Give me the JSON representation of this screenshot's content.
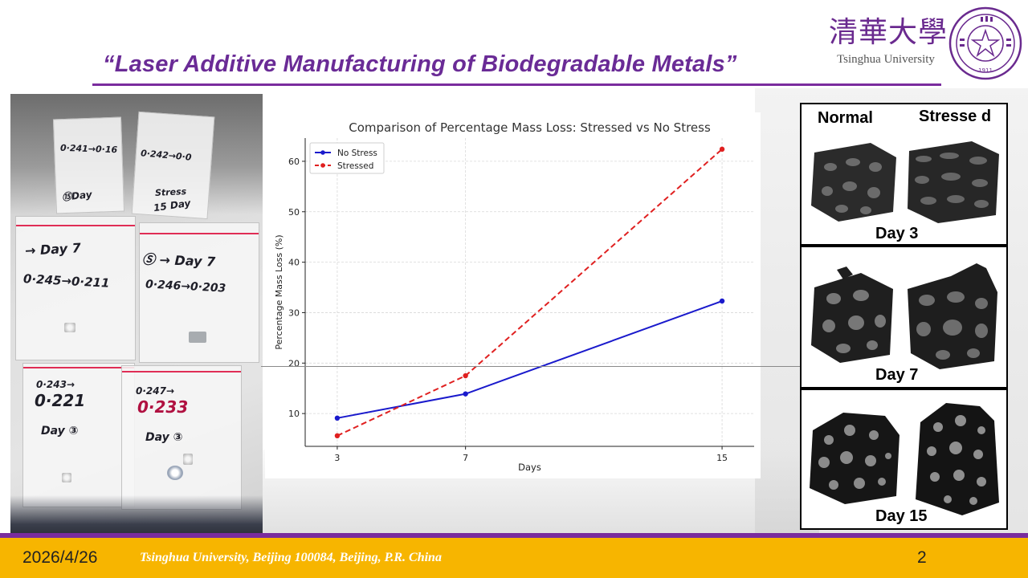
{
  "slide": {
    "title": "“Laser Additive Manufacturing of Biodegradable Metals”",
    "page_number": "2"
  },
  "logo": {
    "chinese": "清華大學",
    "english": "Tsinghua University",
    "seal_year": "1911"
  },
  "photo": {
    "labels": [
      {
        "text": "0·241→0·16"
      },
      {
        "text": "⑮Day"
      },
      {
        "text": "0·242→0·0"
      },
      {
        "text": "Stress"
      },
      {
        "text": "15 Day"
      },
      {
        "text": "→ Day 7"
      },
      {
        "text": "0·245→0·211"
      },
      {
        "text": "Ⓢ → Day 7"
      },
      {
        "text": "0·246→0·203"
      },
      {
        "text": "0·243→"
      },
      {
        "text": "0·221"
      },
      {
        "text": "Day ③"
      },
      {
        "text": "0·247→"
      },
      {
        "text": "0·233"
      },
      {
        "text": "Day ③"
      }
    ]
  },
  "chart_data": {
    "type": "line",
    "title": "Comparison of Percentage Mass Loss: Stressed vs No Stress",
    "xlabel": "Days",
    "ylabel": "Percentage Mass Loss (%)",
    "x": [
      3,
      7,
      15
    ],
    "xlim": [
      2.0,
      16.0
    ],
    "ylim": [
      3.5,
      64.6
    ],
    "xticks": [
      3,
      7,
      15
    ],
    "yticks": [
      10,
      20,
      30,
      40,
      50,
      60
    ],
    "grid": true,
    "legend_position": "top-left",
    "series": [
      {
        "name": "No Stress",
        "values": [
          9.1,
          13.9,
          32.3
        ],
        "color": "#1a1acc",
        "style": "solid"
      },
      {
        "name": "Stressed",
        "values": [
          5.6,
          17.5,
          62.4
        ],
        "color": "#e02020",
        "style": "dashed"
      }
    ]
  },
  "panels": {
    "column_normal": "Normal",
    "column_stressed": "Stresse d",
    "rows": [
      {
        "label": "Day 3"
      },
      {
        "label": "Day 7"
      },
      {
        "label": "Day 15"
      }
    ]
  },
  "footer": {
    "date": "2026/4/26",
    "address": "Tsinghua University, Beijing 100084, Beijing, P.R. China"
  }
}
